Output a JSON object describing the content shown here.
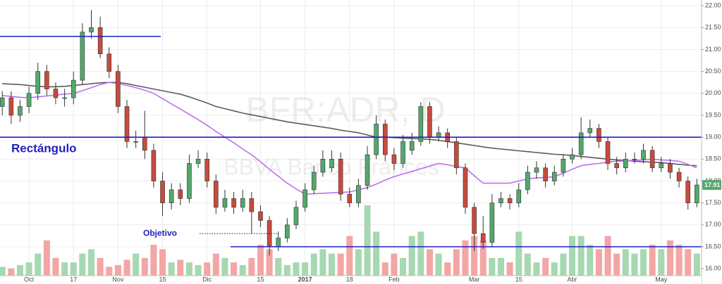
{
  "chart_data": {
    "type": "candlestick",
    "watermark": "BFR:ADR, D",
    "watermark_subtitle": "BBVA Banco Frances",
    "categories": [
      null,
      null,
      null,
      "Oct",
      null,
      null,
      null,
      null,
      "17",
      null,
      null,
      null,
      null,
      "Nov",
      null,
      null,
      null,
      null,
      "15",
      null,
      null,
      null,
      null,
      "Dic",
      null,
      null,
      null,
      null,
      null,
      "15",
      null,
      null,
      null,
      null,
      "2017",
      null,
      null,
      null,
      null,
      "18",
      null,
      null,
      null,
      null,
      "Feb",
      null,
      null,
      null,
      null,
      null,
      null,
      null,
      null,
      "Mar",
      null,
      null,
      null,
      null,
      "15",
      null,
      null,
      null,
      null,
      null,
      "Abr",
      null,
      null,
      null,
      null,
      null,
      null,
      null,
      null,
      null,
      "May",
      null,
      null,
      null,
      null
    ],
    "open": [
      19.7,
      19.9,
      19.5,
      19.7,
      20.0,
      20.5,
      20.1,
      19.9,
      19.9,
      20.3,
      21.4,
      21.5,
      20.9,
      20.5,
      19.7,
      18.9,
      19.0,
      18.7,
      18.0,
      17.5,
      17.8,
      17.6,
      18.4,
      18.5,
      18.0,
      17.4,
      17.6,
      17.4,
      17.6,
      17.3,
      17.1,
      16.5,
      16.7,
      17.0,
      17.4,
      17.8,
      18.2,
      18.3,
      18.5,
      17.7,
      17.5,
      17.9,
      18.6,
      19.3,
      18.6,
      18.4,
      18.7,
      18.9,
      19.7,
      19.0,
      19.1,
      18.9,
      18.3,
      17.4,
      16.8,
      16.6,
      17.5,
      17.6,
      17.5,
      17.8,
      18.2,
      18.3,
      18.0,
      18.2,
      18.5,
      18.6,
      19.1,
      19.2,
      18.9,
      18.4,
      18.3,
      18.5,
      18.5,
      18.7,
      18.3,
      18.4,
      18.2,
      18.0,
      17.5
    ],
    "high": [
      20.05,
      20.05,
      19.85,
      20.15,
      20.7,
      20.65,
      20.25,
      20.1,
      20.5,
      21.6,
      21.9,
      21.75,
      21.05,
      20.65,
      19.85,
      19.15,
      19.6,
      18.85,
      18.2,
      17.95,
      17.95,
      18.6,
      18.7,
      18.65,
      18.15,
      17.8,
      17.75,
      17.8,
      17.75,
      17.45,
      17.2,
      16.85,
      17.15,
      17.55,
      17.95,
      18.35,
      18.7,
      18.7,
      18.65,
      17.85,
      18.05,
      18.8,
      19.5,
      19.4,
      18.75,
      19.05,
      19.1,
      19.8,
      19.8,
      19.25,
      19.2,
      19.0,
      18.4,
      17.5,
      17.2,
      17.7,
      17.75,
      17.7,
      17.95,
      18.35,
      18.45,
      18.4,
      18.35,
      18.6,
      18.75,
      19.45,
      19.4,
      19.3,
      19.0,
      18.55,
      18.65,
      18.65,
      18.85,
      18.8,
      18.55,
      18.5,
      18.3,
      18.1,
      18.05
    ],
    "low": [
      19.5,
      19.3,
      19.35,
      19.55,
      19.85,
      19.95,
      19.75,
      19.7,
      19.75,
      20.2,
      21.25,
      20.8,
      20.35,
      19.55,
      18.75,
      18.75,
      18.5,
      17.85,
      17.2,
      17.35,
      17.45,
      17.5,
      18.3,
      17.85,
      17.25,
      17.3,
      17.25,
      17.3,
      16.8,
      16.95,
      16.3,
      16.4,
      16.6,
      16.9,
      17.3,
      17.7,
      18.1,
      18.2,
      17.55,
      17.4,
      17.4,
      17.8,
      18.5,
      18.45,
      18.25,
      18.3,
      18.6,
      18.8,
      18.85,
      18.9,
      18.75,
      18.15,
      17.25,
      16.4,
      16.45,
      16.5,
      17.4,
      17.35,
      17.4,
      17.7,
      18.05,
      17.85,
      17.9,
      18.1,
      18.4,
      18.5,
      19.0,
      18.75,
      18.25,
      18.15,
      18.2,
      18.4,
      18.4,
      18.2,
      18.2,
      18.05,
      17.85,
      17.35,
      17.4
    ],
    "close": [
      19.9,
      19.5,
      19.7,
      20.0,
      20.5,
      20.1,
      19.9,
      19.9,
      20.3,
      21.4,
      21.5,
      20.9,
      20.5,
      19.7,
      18.9,
      18.9,
      18.7,
      18.0,
      17.5,
      17.8,
      17.6,
      18.4,
      18.5,
      18.0,
      17.4,
      17.6,
      17.4,
      17.6,
      17.3,
      17.1,
      16.5,
      16.7,
      17.0,
      17.4,
      17.8,
      18.2,
      18.5,
      18.5,
      17.7,
      17.5,
      17.9,
      18.6,
      19.3,
      18.6,
      18.4,
      18.9,
      18.9,
      19.7,
      19.0,
      19.1,
      18.9,
      18.3,
      17.4,
      16.8,
      16.6,
      17.5,
      17.6,
      17.5,
      17.8,
      18.2,
      18.3,
      18.0,
      18.2,
      18.5,
      18.6,
      19.1,
      19.2,
      18.9,
      18.4,
      18.3,
      18.5,
      18.5,
      18.7,
      18.3,
      18.4,
      18.2,
      18.0,
      17.5,
      17.91
    ],
    "volume": [
      1.0,
      0.8,
      1.2,
      1.5,
      2.5,
      4.0,
      2.0,
      1.5,
      1.5,
      2.5,
      3.0,
      2.0,
      1.0,
      1.2,
      1.8,
      2.5,
      2.0,
      3.5,
      3.0,
      1.5,
      1.8,
      1.5,
      1.2,
      1.5,
      2.5,
      2.0,
      1.5,
      1.2,
      2.0,
      3.5,
      3.0,
      2.0,
      1.2,
      1.5,
      1.5,
      2.5,
      3.0,
      2.5,
      2.5,
      4.5,
      3.0,
      8.0,
      5.0,
      1.5,
      2.5,
      2.0,
      4.5,
      5.0,
      3.0,
      2.5,
      1.5,
      3.0,
      4.0,
      4.5,
      4.0,
      2.0,
      2.0,
      1.5,
      5.0,
      2.5,
      1.5,
      2.0,
      1.5,
      2.5,
      4.5,
      4.5,
      3.5,
      3.0,
      4.5,
      2.5,
      3.0,
      2.5,
      3.0,
      3.5,
      3.0,
      4.0,
      3.5,
      3.0,
      2.5
    ],
    "moving_averages": [
      {
        "color": "#5b5b5b",
        "values": [
          20.22,
          20.21,
          20.2,
          20.18,
          20.16,
          20.15,
          20.15,
          20.16,
          20.18,
          20.2,
          20.22,
          20.24,
          20.25,
          20.25,
          20.22,
          20.18,
          20.14,
          20.1,
          20.06,
          20.02,
          19.98,
          19.92,
          19.85,
          19.78,
          19.7,
          19.65,
          19.6,
          19.55,
          19.51,
          19.47,
          19.43,
          19.39,
          19.35,
          19.32,
          19.29,
          19.26,
          19.23,
          19.2,
          19.16,
          19.13,
          19.1,
          19.05,
          19.0,
          19.0,
          18.99,
          18.98,
          18.97,
          18.96,
          18.95,
          18.93,
          18.9,
          18.87,
          18.84,
          18.81,
          18.78,
          18.75,
          18.73,
          18.71,
          18.69,
          18.67,
          18.65,
          18.63,
          18.61,
          18.6,
          18.58,
          18.56,
          18.54,
          18.52,
          18.5,
          18.48,
          18.47,
          18.45,
          18.44,
          18.43,
          18.42,
          18.4,
          18.38,
          18.36,
          18.35
        ]
      },
      {
        "color": "#bf6fef",
        "values": [
          19.95,
          19.93,
          19.91,
          19.9,
          19.92,
          19.94,
          19.96,
          19.98,
          20.0,
          20.06,
          20.13,
          20.2,
          20.25,
          20.22,
          20.18,
          20.13,
          20.07,
          20.0,
          19.88,
          19.76,
          19.64,
          19.52,
          19.4,
          19.27,
          19.13,
          19.0,
          18.87,
          18.73,
          18.6,
          18.44,
          18.27,
          18.11,
          17.95,
          17.82,
          17.7,
          17.71,
          17.72,
          17.73,
          17.74,
          17.75,
          17.8,
          17.85,
          17.93,
          18.02,
          18.1,
          18.16,
          18.22,
          18.28,
          18.34,
          18.4,
          18.37,
          18.33,
          18.3,
          18.12,
          17.95,
          17.95,
          17.95,
          17.95,
          18.0,
          18.05,
          18.07,
          18.08,
          18.1,
          18.18,
          18.27,
          18.35,
          18.38,
          18.4,
          18.43,
          18.45,
          18.46,
          18.47,
          18.48,
          18.5,
          18.48,
          18.47,
          18.45,
          18.38,
          18.3
        ]
      }
    ],
    "up_color": "#53a86c",
    "down_color": "#c84a3c",
    "volume_up_color": "#a6d8b1",
    "volume_down_color": "#f4a5a5",
    "levels": [
      {
        "value": 21.3,
        "color": "#1f1fc4",
        "style": "solid"
      },
      {
        "value": 19.0,
        "color": "#1f1fc4",
        "style": "solid"
      },
      {
        "value": 16.5,
        "color": "#1f1fc4",
        "style": "solid"
      },
      {
        "value": 16.8,
        "color": "#1f1fc4",
        "style": "dotted"
      }
    ],
    "annotations": [
      {
        "text": "Rectángulo",
        "level": 1
      },
      {
        "text": "Objetivo",
        "level": 3
      }
    ],
    "ylim": [
      15.65,
      22.13
    ],
    "yticks": [
      {
        "value": 16,
        "label": "16.00"
      },
      {
        "value": 16.5,
        "label": "16.50"
      },
      {
        "value": 17,
        "label": "17.00"
      },
      {
        "value": 17.5,
        "label": "17.50"
      },
      {
        "value": 18,
        "label": "18.00"
      },
      {
        "value": 18.5,
        "label": "18.50"
      },
      {
        "value": 19,
        "label": "19.00"
      },
      {
        "value": 19.5,
        "label": "19.50"
      },
      {
        "value": 20,
        "label": "20.00"
      },
      {
        "value": 20.5,
        "label": "20.50"
      },
      {
        "value": 21,
        "label": "21.00"
      },
      {
        "value": 21.5,
        "label": "21.50"
      },
      {
        "value": 22,
        "label": "22.00"
      }
    ],
    "grid": true
  }
}
